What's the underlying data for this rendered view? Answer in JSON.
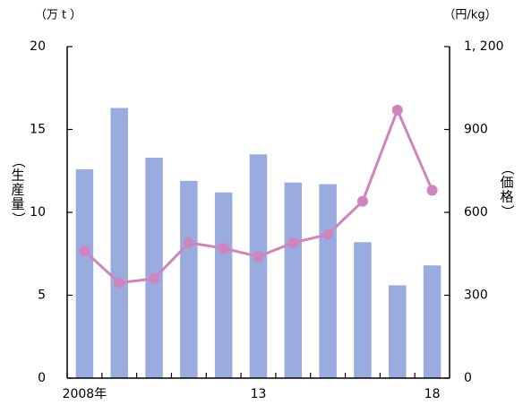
{
  "chart_data": {
    "type": "bar",
    "categories": [
      "2008年",
      "",
      "",
      "",
      "",
      "13",
      "",
      "",
      "",
      "",
      "18"
    ],
    "series": [
      {
        "values": [
          12.6,
          16.3,
          13.3,
          11.9,
          11.2,
          13.5,
          11.8,
          11.7,
          8.2,
          5.6,
          6.8
        ],
        "color": "#9aacdf",
        "kind": "bar",
        "axis": "left"
      },
      {
        "values": [
          460,
          345,
          360,
          490,
          470,
          440,
          490,
          520,
          640,
          970,
          680
        ],
        "color": "#cf84be",
        "kind": "line",
        "axis": "right"
      }
    ],
    "left_axis": {
      "unit": "（万 t ）",
      "label": "（生産量）",
      "ticks": [
        "0",
        "5",
        "10",
        "15",
        "20"
      ],
      "ylim": [
        0,
        20
      ]
    },
    "right_axis": {
      "unit": "（円/kg）",
      "label": "（価格）",
      "ticks": [
        "0",
        "300",
        "600",
        "900",
        "1, 200"
      ],
      "ylim": [
        0,
        1200
      ]
    },
    "grid": false,
    "legend": "none"
  }
}
